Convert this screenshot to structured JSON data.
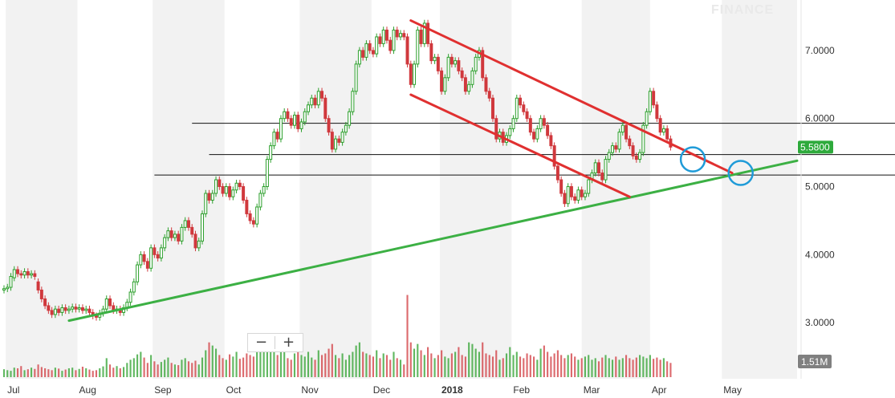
{
  "watermark": "FINANCE",
  "chart_data": {
    "type": "candlestick",
    "title": "",
    "y_ticks": [
      "7.0000",
      "6.0000",
      "5.0000",
      "4.0000",
      "3.0000"
    ],
    "y_tick_values": [
      7,
      6,
      5,
      4,
      3
    ],
    "ylim": [
      2.2,
      7.6
    ],
    "x_ticks": [
      "Jul",
      "Aug",
      "Sep",
      "Oct",
      "Nov",
      "Dec",
      "2018",
      "Feb",
      "Mar",
      "Apr",
      "May"
    ],
    "x_tick_bold": [
      false,
      false,
      false,
      false,
      false,
      false,
      true,
      false,
      false,
      false,
      false
    ],
    "x_tick_pos": [
      0.5,
      21.5,
      43.5,
      64.5,
      86.5,
      107.5,
      127.5,
      148.5,
      169,
      189,
      210
    ],
    "domain_days": [
      0,
      232
    ],
    "last_price": "5.5800",
    "last_price_value": 5.58,
    "volume_label": "1.51M",
    "candles": [
      [
        3.48,
        3.5
      ],
      [
        3.5,
        3.52
      ],
      [
        3.52,
        3.68
      ],
      [
        3.66,
        3.78
      ],
      [
        3.78,
        3.72
      ],
      [
        3.72,
        3.7
      ],
      [
        3.7,
        3.75
      ],
      [
        3.75,
        3.7
      ],
      [
        3.7,
        3.72
      ],
      [
        3.72,
        3.68
      ],
      [
        3.6,
        3.48
      ],
      [
        3.48,
        3.35
      ],
      [
        3.35,
        3.25
      ],
      [
        3.25,
        3.18
      ],
      [
        3.18,
        3.12
      ],
      [
        3.12,
        3.2
      ],
      [
        3.2,
        3.15
      ],
      [
        3.15,
        3.22
      ],
      [
        3.22,
        3.18
      ],
      [
        3.18,
        3.2
      ],
      [
        3.2,
        3.23
      ],
      [
        3.23,
        3.2
      ],
      [
        3.2,
        3.22
      ],
      [
        3.22,
        3.18
      ],
      [
        3.18,
        3.2
      ],
      [
        3.2,
        3.15
      ],
      [
        3.15,
        3.1
      ],
      [
        3.1,
        3.08
      ],
      [
        3.08,
        3.14
      ],
      [
        3.14,
        3.2
      ],
      [
        3.2,
        3.35
      ],
      [
        3.35,
        3.25
      ],
      [
        3.25,
        3.18
      ],
      [
        3.18,
        3.2
      ],
      [
        3.2,
        3.15
      ],
      [
        3.15,
        3.22
      ],
      [
        3.22,
        3.3
      ],
      [
        3.3,
        3.45
      ],
      [
        3.45,
        3.6
      ],
      [
        3.6,
        3.85
      ],
      [
        3.85,
        4.0
      ],
      [
        4.0,
        3.9
      ],
      [
        3.9,
        3.8
      ],
      [
        3.8,
        4.1
      ],
      [
        4.1,
        4.0
      ],
      [
        4.0,
        3.95
      ],
      [
        3.95,
        4.1
      ],
      [
        4.1,
        4.25
      ],
      [
        4.25,
        4.35
      ],
      [
        4.35,
        4.25
      ],
      [
        4.25,
        4.3
      ],
      [
        4.3,
        4.2
      ],
      [
        4.2,
        4.4
      ],
      [
        4.4,
        4.5
      ],
      [
        4.5,
        4.4
      ],
      [
        4.4,
        4.3
      ],
      [
        4.3,
        4.1
      ],
      [
        4.1,
        4.2
      ],
      [
        4.2,
        4.6
      ],
      [
        4.6,
        4.9
      ],
      [
        4.9,
        4.8
      ],
      [
        4.8,
        4.9
      ],
      [
        4.9,
        5.1
      ],
      [
        5.1,
        5.0
      ],
      [
        5.0,
        4.9
      ],
      [
        4.9,
        5.0
      ],
      [
        5.0,
        4.85
      ],
      [
        4.85,
        4.95
      ],
      [
        4.95,
        5.05
      ],
      [
        5.05,
        5.0
      ],
      [
        5.0,
        4.8
      ],
      [
        4.8,
        4.6
      ],
      [
        4.6,
        4.5
      ],
      [
        4.5,
        4.45
      ],
      [
        4.45,
        4.7
      ],
      [
        4.7,
        4.9
      ],
      [
        4.9,
        5.0
      ],
      [
        5.0,
        5.4
      ],
      [
        5.4,
        5.6
      ],
      [
        5.6,
        5.8
      ],
      [
        5.8,
        5.7
      ],
      [
        5.7,
        6.0
      ],
      [
        6.0,
        6.1
      ],
      [
        6.1,
        6.0
      ],
      [
        6.0,
        5.9
      ],
      [
        5.9,
        6.05
      ],
      [
        6.05,
        5.85
      ],
      [
        5.85,
        5.95
      ],
      [
        5.95,
        6.1
      ],
      [
        6.1,
        6.2
      ],
      [
        6.2,
        6.3
      ],
      [
        6.3,
        6.2
      ],
      [
        6.2,
        6.4
      ],
      [
        6.4,
        6.3
      ],
      [
        6.3,
        6.0
      ],
      [
        6.0,
        5.8
      ],
      [
        5.8,
        5.55
      ],
      [
        5.55,
        5.7
      ],
      [
        5.7,
        5.65
      ],
      [
        5.65,
        5.8
      ],
      [
        5.8,
        5.9
      ],
      [
        5.9,
        6.1
      ],
      [
        6.1,
        6.4
      ],
      [
        6.4,
        6.8
      ],
      [
        6.8,
        7.0
      ],
      [
        7.0,
        6.9
      ],
      [
        6.9,
        7.1
      ],
      [
        7.1,
        7.0
      ],
      [
        7.0,
        6.95
      ],
      [
        6.95,
        7.2
      ],
      [
        7.2,
        7.1
      ],
      [
        7.1,
        7.3
      ],
      [
        7.3,
        7.15
      ],
      [
        7.15,
        7.0
      ],
      [
        7.0,
        7.3
      ],
      [
        7.3,
        7.2
      ],
      [
        7.2,
        7.25
      ],
      [
        7.25,
        7.2
      ],
      [
        7.2,
        6.8
      ],
      [
        6.8,
        6.5
      ],
      [
        6.5,
        6.8
      ],
      [
        6.8,
        7.3
      ],
      [
        7.3,
        7.1
      ],
      [
        7.1,
        7.4
      ],
      [
        7.4,
        7.1
      ],
      [
        7.1,
        6.85
      ],
      [
        6.85,
        6.9
      ],
      [
        6.9,
        6.7
      ],
      [
        6.7,
        6.4
      ],
      [
        6.4,
        6.6
      ],
      [
        6.6,
        6.9
      ],
      [
        6.9,
        6.8
      ],
      [
        6.8,
        6.85
      ],
      [
        6.85,
        6.7
      ],
      [
        6.7,
        6.6
      ],
      [
        6.6,
        6.4
      ],
      [
        6.4,
        6.5
      ],
      [
        6.5,
        6.7
      ],
      [
        6.7,
        6.9
      ],
      [
        6.9,
        7.0
      ],
      [
        7.0,
        6.6
      ],
      [
        6.6,
        6.4
      ],
      [
        6.4,
        6.3
      ],
      [
        6.3,
        6.0
      ],
      [
        6.0,
        5.7
      ],
      [
        5.7,
        5.8
      ],
      [
        5.8,
        5.65
      ],
      [
        5.65,
        5.75
      ],
      [
        5.75,
        5.85
      ],
      [
        5.85,
        6.0
      ],
      [
        6.0,
        6.3
      ],
      [
        6.3,
        6.2
      ],
      [
        6.2,
        6.1
      ],
      [
        6.1,
        6.0
      ],
      [
        6.0,
        5.8
      ],
      [
        5.8,
        5.7
      ],
      [
        5.7,
        5.85
      ],
      [
        5.85,
        6.0
      ],
      [
        6.0,
        5.9
      ],
      [
        5.9,
        5.75
      ],
      [
        5.75,
        5.6
      ],
      [
        5.6,
        5.3
      ],
      [
        5.3,
        5.1
      ],
      [
        5.1,
        4.9
      ],
      [
        4.9,
        4.75
      ],
      [
        4.75,
        5.0
      ],
      [
        5.0,
        4.85
      ],
      [
        4.85,
        4.8
      ],
      [
        4.8,
        4.95
      ],
      [
        4.95,
        4.85
      ],
      [
        4.85,
        4.9
      ],
      [
        4.9,
        5.1
      ],
      [
        5.1,
        5.2
      ],
      [
        5.2,
        5.35
      ],
      [
        5.35,
        5.2
      ],
      [
        5.2,
        5.1
      ],
      [
        5.1,
        5.4
      ],
      [
        5.4,
        5.5
      ],
      [
        5.5,
        5.6
      ],
      [
        5.6,
        5.55
      ],
      [
        5.55,
        5.8
      ],
      [
        5.8,
        5.9
      ],
      [
        5.9,
        5.7
      ],
      [
        5.7,
        5.6
      ],
      [
        5.6,
        5.45
      ],
      [
        5.45,
        5.4
      ],
      [
        5.4,
        5.5
      ],
      [
        5.5,
        5.9
      ],
      [
        5.9,
        6.1
      ],
      [
        6.1,
        6.4
      ],
      [
        6.4,
        6.2
      ],
      [
        6.2,
        6.0
      ],
      [
        6.0,
        5.8
      ],
      [
        5.8,
        5.85
      ],
      [
        5.85,
        5.7
      ],
      [
        5.7,
        5.58
      ]
    ],
    "volume": [
      0.25,
      0.22,
      0.2,
      0.3,
      0.28,
      0.35,
      0.22,
      0.25,
      0.3,
      0.26,
      0.4,
      0.32,
      0.28,
      0.25,
      0.22,
      0.3,
      0.27,
      0.2,
      0.24,
      0.28,
      0.3,
      0.22,
      0.26,
      0.33,
      0.28,
      0.24,
      0.2,
      0.22,
      0.28,
      0.34,
      0.6,
      0.4,
      0.3,
      0.35,
      0.28,
      0.32,
      0.45,
      0.55,
      0.6,
      0.72,
      0.8,
      0.62,
      0.45,
      0.7,
      0.5,
      0.4,
      0.48,
      0.55,
      0.62,
      0.45,
      0.4,
      0.38,
      0.55,
      0.6,
      0.5,
      0.45,
      0.52,
      0.4,
      0.62,
      0.85,
      1.1,
      1.0,
      0.9,
      0.7,
      0.6,
      0.55,
      0.72,
      0.65,
      0.8,
      0.58,
      0.62,
      0.75,
      0.7,
      0.65,
      0.8,
      1.05,
      0.85,
      1.2,
      1.0,
      0.95,
      0.7,
      0.9,
      0.8,
      0.6,
      0.55,
      0.75,
      0.95,
      0.7,
      0.65,
      0.8,
      0.62,
      0.55,
      0.85,
      0.7,
      0.75,
      0.9,
      1.05,
      0.7,
      0.6,
      0.75,
      0.55,
      0.7,
      0.8,
      1.0,
      1.1,
      0.8,
      0.75,
      0.7,
      0.65,
      0.85,
      0.6,
      0.75,
      0.7,
      0.55,
      0.8,
      0.6,
      0.55,
      0.4,
      2.6,
      1.1,
      0.9,
      1.05,
      0.85,
      0.7,
      0.95,
      0.75,
      0.6,
      0.7,
      0.85,
      0.65,
      0.6,
      0.75,
      0.8,
      0.95,
      0.7,
      0.65,
      1.1,
      1.05,
      0.9,
      0.8,
      1.1,
      0.75,
      0.7,
      0.65,
      0.85,
      0.55,
      0.6,
      0.75,
      0.95,
      0.7,
      0.8,
      0.65,
      0.6,
      0.75,
      0.7,
      0.65,
      0.55,
      0.9,
      1.0,
      0.8,
      0.65,
      0.75,
      0.85,
      0.7,
      0.6,
      0.7,
      0.75,
      0.65,
      0.55,
      0.6,
      0.65,
      0.7,
      0.55,
      0.6,
      0.5,
      0.62,
      0.7,
      0.6,
      0.55,
      0.65,
      0.55,
      0.6,
      0.7,
      0.6,
      0.55,
      0.62,
      0.7,
      0.65,
      0.6,
      0.7,
      0.58,
      0.62,
      0.55,
      0.6,
      0.5,
      0.45
    ],
    "volume_max": 3.3,
    "annotations": {
      "horizontal_lines": [
        {
          "y": 5.93,
          "from": 55,
          "to": 232
        },
        {
          "y": 5.47,
          "from": 60,
          "to": 232
        },
        {
          "y": 5.17,
          "from": 44,
          "to": 232
        }
      ],
      "trend_lines": [
        {
          "color": "#3cb044",
          "from": [
            19,
            3.03
          ],
          "to": [
            232,
            5.38
          ],
          "name": "support-trendline"
        },
        {
          "color": "#e03030",
          "from": [
            119,
            7.44
          ],
          "to": [
            213,
            5.2
          ],
          "name": "channel-upper-line"
        },
        {
          "color": "#e03030",
          "from": [
            119,
            6.35
          ],
          "to": [
            183,
            4.85
          ],
          "name": "channel-lower-line"
        }
      ],
      "circles": [
        {
          "x": 201.5,
          "y": 5.4,
          "name": "breakout-circle"
        },
        {
          "x": 215.5,
          "y": 5.2,
          "name": "target-circle"
        }
      ]
    },
    "colors": {
      "up": "#2ca02c",
      "down": "#d0383d",
      "trend_support": "#3cb044",
      "trend_channel": "#e03030",
      "circle": "#1f9bd8",
      "price_label": "#2eaa3c",
      "volume_label": "#808080",
      "band": "#f2f2f2"
    }
  },
  "zoom": {
    "minus": "−",
    "plus": "+"
  }
}
